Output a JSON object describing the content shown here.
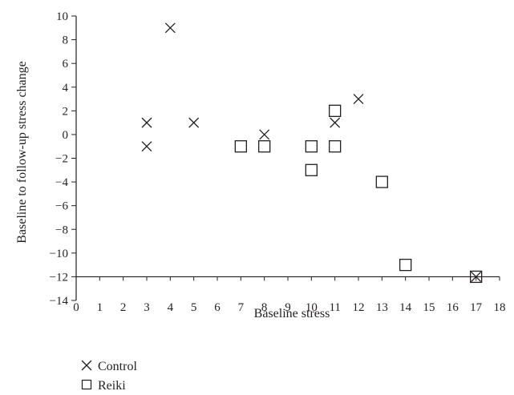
{
  "chart_data": {
    "type": "scatter",
    "title": "",
    "xlabel": "Baseline stress",
    "ylabel": "Baseline to follow-up stress change",
    "xlim": [
      0,
      18
    ],
    "ylim": [
      -14,
      10
    ],
    "x_ticks": [
      0,
      1,
      2,
      3,
      4,
      5,
      6,
      7,
      8,
      9,
      10,
      11,
      12,
      13,
      14,
      15,
      16,
      17,
      18
    ],
    "y_ticks": [
      10,
      8,
      6,
      4,
      2,
      0,
      -2,
      -4,
      -6,
      -8,
      -10,
      -12,
      -14
    ],
    "grid": false,
    "legend_position": "bottom-left, below chart",
    "series": [
      {
        "name": "Control",
        "marker": "cross",
        "points": [
          {
            "x": 3,
            "y": 1
          },
          {
            "x": 3,
            "y": -1
          },
          {
            "x": 4,
            "y": 9
          },
          {
            "x": 5,
            "y": 1
          },
          {
            "x": 8,
            "y": 0
          },
          {
            "x": 11,
            "y": 1
          },
          {
            "x": 12,
            "y": 3
          },
          {
            "x": 17,
            "y": -12
          }
        ]
      },
      {
        "name": "Reiki",
        "marker": "square",
        "points": [
          {
            "x": 7,
            "y": -1
          },
          {
            "x": 8,
            "y": -1
          },
          {
            "x": 10,
            "y": -1
          },
          {
            "x": 10,
            "y": -3
          },
          {
            "x": 11,
            "y": 2
          },
          {
            "x": 11,
            "y": -1
          },
          {
            "x": 13,
            "y": -4
          },
          {
            "x": 14,
            "y": -11
          },
          {
            "x": 17,
            "y": -12
          }
        ]
      }
    ],
    "colors": {
      "ink": "#231f20",
      "background": "#ffffff"
    }
  }
}
